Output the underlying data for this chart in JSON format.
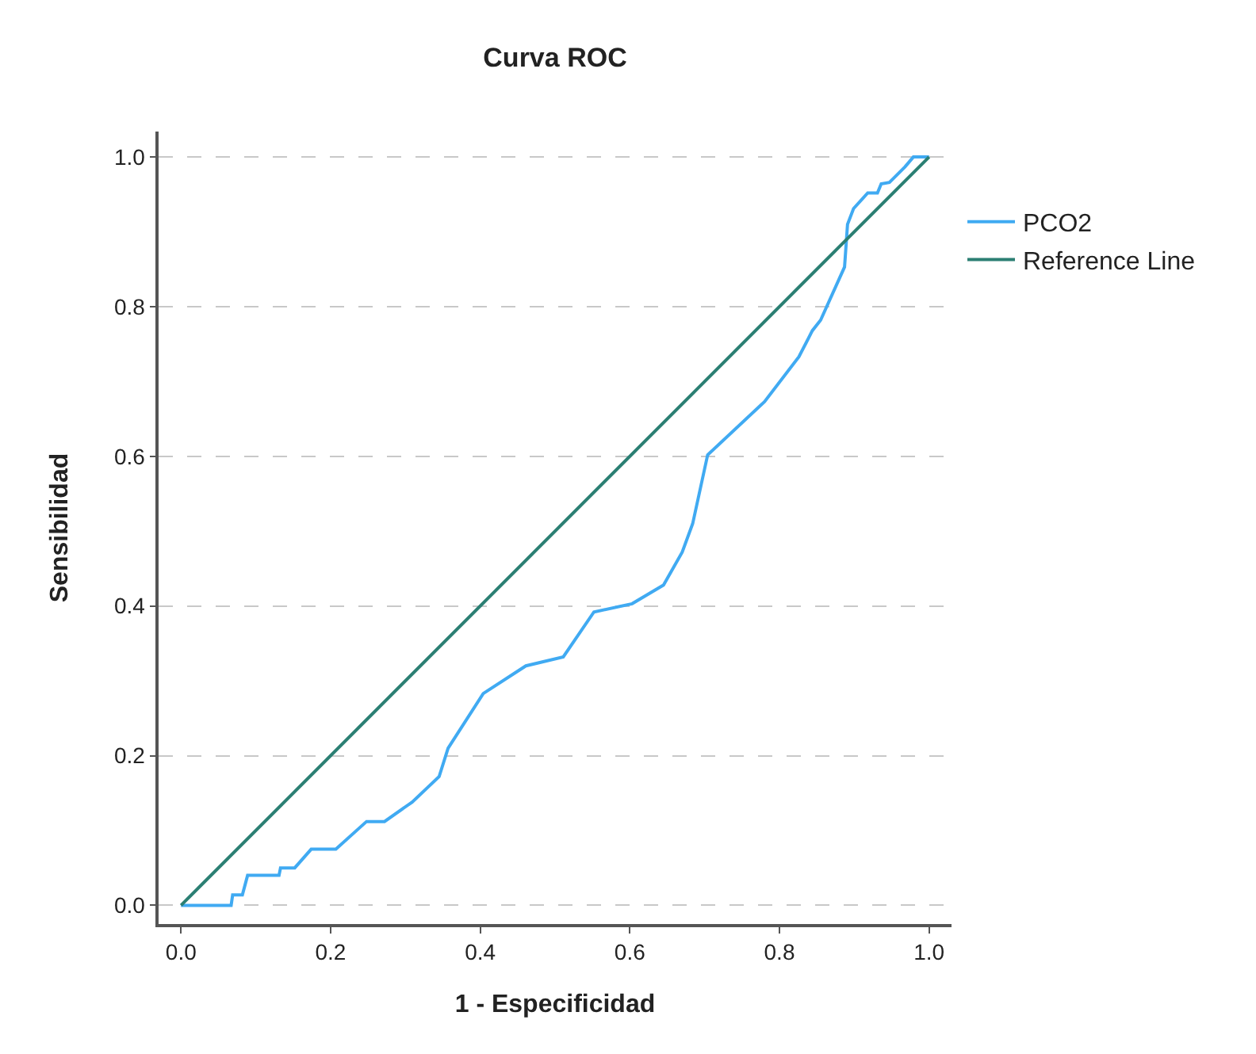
{
  "chart_data": {
    "type": "line",
    "title": "Curva ROC",
    "xlabel": "1 - Especificidad",
    "ylabel": "Sensibilidad",
    "xlim": [
      -0.03,
      1.03
    ],
    "ylim": [
      -0.025,
      1.034
    ],
    "xticks": [
      {
        "value": 0,
        "label": "0.0"
      },
      0.2,
      0.4,
      0.6,
      0.8,
      {
        "value": 1,
        "label": "1.0"
      }
    ],
    "yticks": [
      {
        "value": 0,
        "label": "0.0"
      },
      0.2,
      0.4,
      0.6,
      0.8,
      {
        "value": 1,
        "label": "1.0"
      }
    ],
    "grid": "y",
    "legend": "top right",
    "marker": "none",
    "line_style": "solid",
    "series": [
      {
        "name": "PCO2",
        "color": "#40aaf2",
        "x": [
          0,
          0.067,
          0.069,
          0.082,
          0.089,
          0.131,
          0.133,
          0.152,
          0.174,
          0.207,
          0.248,
          0.272,
          0.309,
          0.345,
          0.357,
          0.404,
          0.461,
          0.511,
          0.552,
          0.603,
          0.645,
          0.67,
          0.684,
          0.704,
          0.78,
          0.826,
          0.844,
          0.855,
          0.887,
          0.891,
          0.899,
          0.918,
          0.931,
          0.936,
          0.947,
          0.968,
          0.979,
          1.0
        ],
        "values": [
          0,
          0,
          0.014,
          0.014,
          0.04,
          0.04,
          0.05,
          0.05,
          0.075,
          0.075,
          0.112,
          0.112,
          0.138,
          0.172,
          0.21,
          0.283,
          0.32,
          0.332,
          0.392,
          0.403,
          0.428,
          0.472,
          0.51,
          0.602,
          0.673,
          0.733,
          0.768,
          0.782,
          0.853,
          0.91,
          0.931,
          0.952,
          0.952,
          0.964,
          0.966,
          0.987,
          1.0,
          1.0
        ]
      },
      {
        "name": "Reference Line",
        "color": "#2b7f73",
        "x": [
          0,
          1
        ],
        "values": [
          0,
          1
        ]
      }
    ]
  }
}
